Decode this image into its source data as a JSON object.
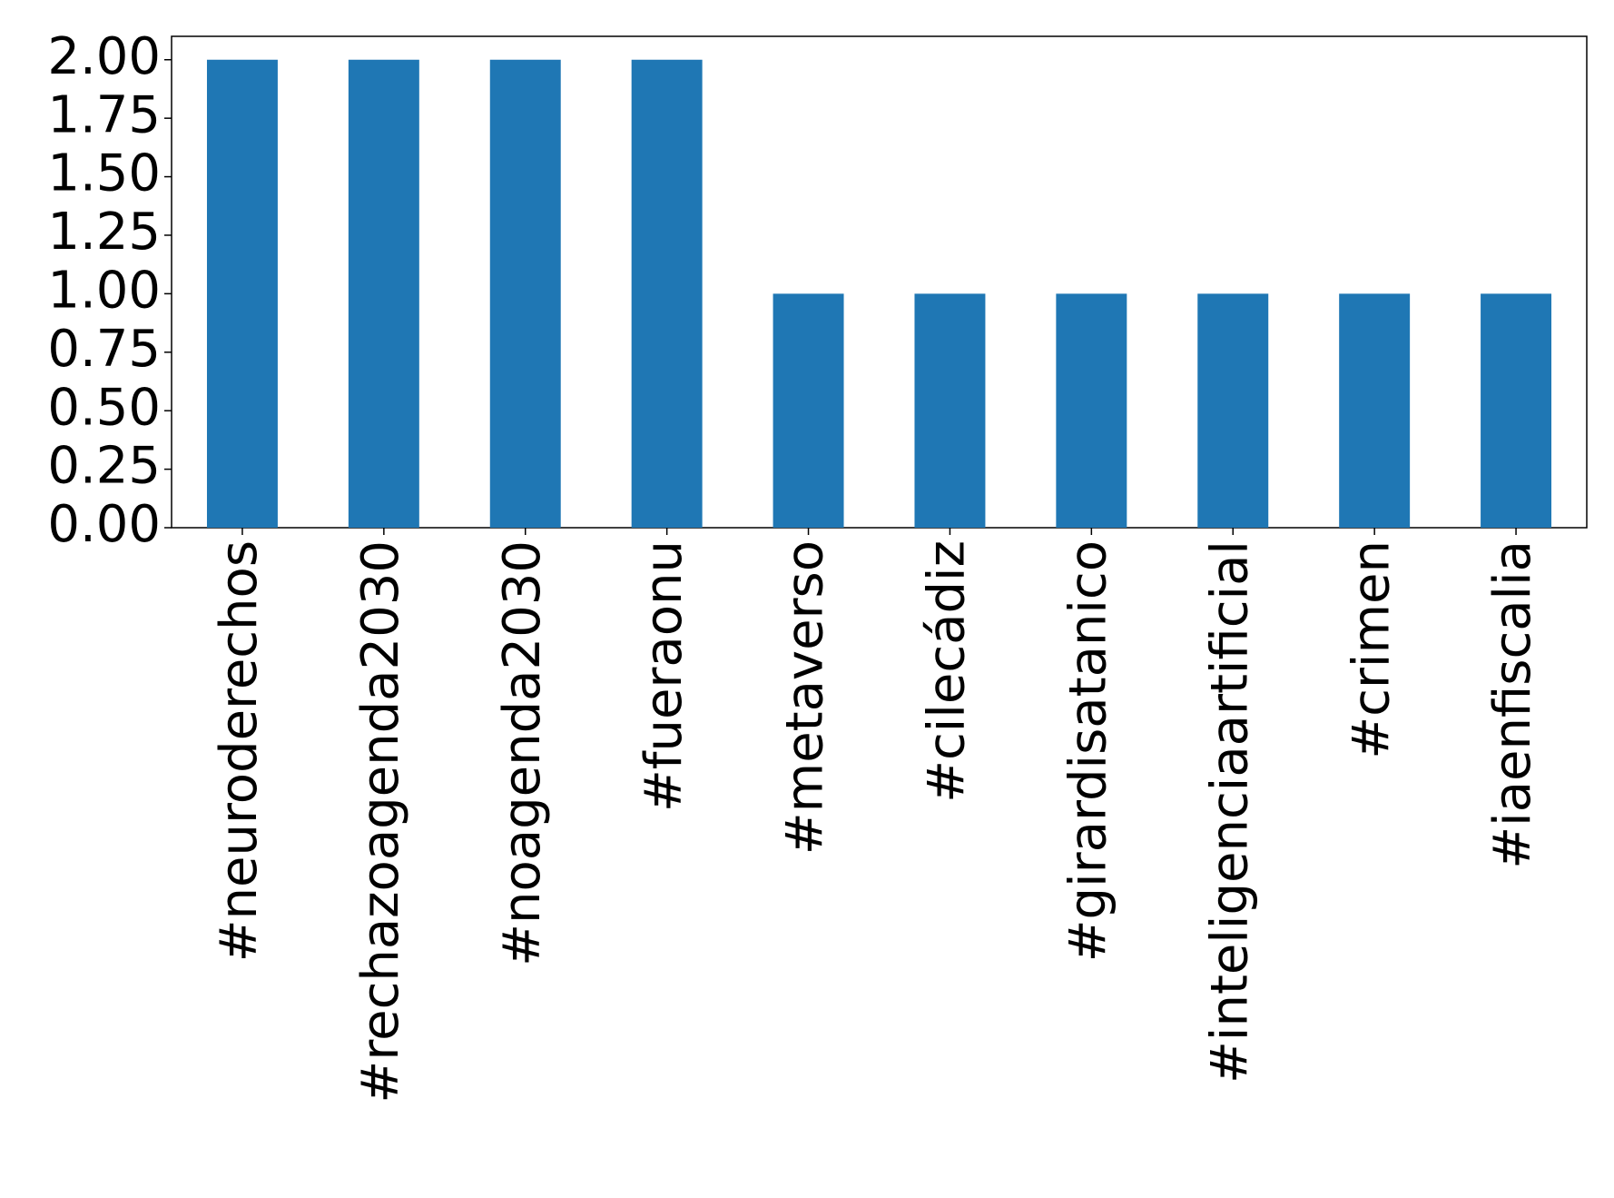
{
  "chart_data": {
    "type": "bar",
    "categories": [
      "#neuroderechos",
      "#rechazoagenda2030",
      "#noagenda2030",
      "#fueraonu",
      "#metaverso",
      "#cilecádiz",
      "#girardisatanico",
      "#inteligenciaartificial",
      "#crimen",
      "#iaenfiscalia"
    ],
    "values": [
      2,
      2,
      2,
      2,
      1,
      1,
      1,
      1,
      1,
      1
    ],
    "color": "#1f77b4",
    "ylim": [
      0,
      2.1
    ],
    "yticks": [
      {
        "value": 0,
        "label": "0.00"
      },
      {
        "value": 0.25,
        "label": "0.25"
      },
      {
        "value": 0.5,
        "label": "0.50"
      },
      {
        "value": 0.75,
        "label": "0.75"
      },
      {
        "value": 1,
        "label": "1.00"
      },
      {
        "value": 1.25,
        "label": "1.25"
      },
      {
        "value": 1.5,
        "label": "1.50"
      },
      {
        "value": 1.75,
        "label": "1.75"
      },
      {
        "value": 2,
        "label": "2.00"
      }
    ],
    "grid": false
  }
}
